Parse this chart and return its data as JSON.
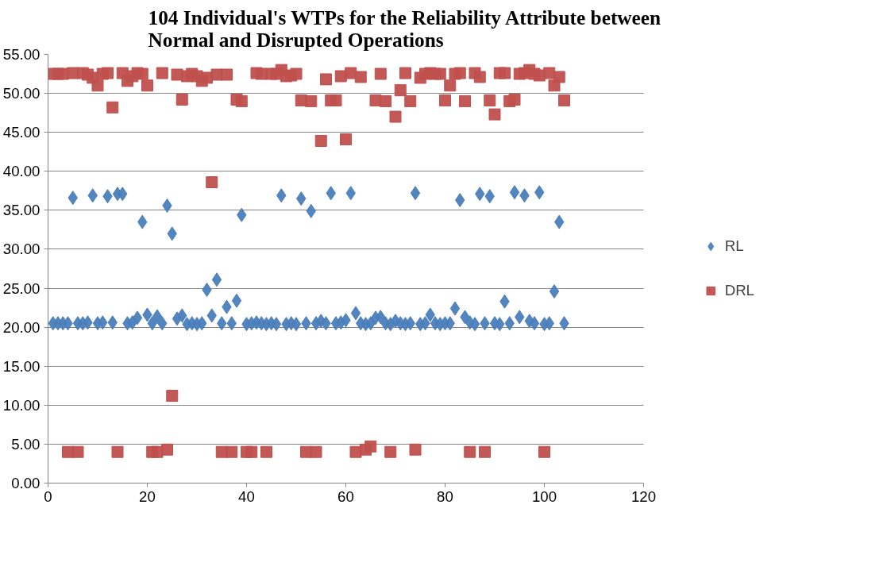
{
  "chart_data": {
    "type": "scatter",
    "title": "104 Individual's WTPs for the Reliability Attribute between Normal and Disrupted Operations",
    "x": [
      1,
      2,
      3,
      4,
      5,
      6,
      7,
      8,
      9,
      10,
      11,
      12,
      13,
      14,
      15,
      16,
      17,
      18,
      19,
      20,
      21,
      22,
      23,
      24,
      25,
      26,
      27,
      28,
      29,
      30,
      31,
      32,
      33,
      34,
      35,
      36,
      37,
      38,
      39,
      40,
      41,
      42,
      43,
      44,
      45,
      46,
      47,
      48,
      49,
      50,
      51,
      52,
      53,
      54,
      55,
      56,
      57,
      58,
      59,
      60,
      61,
      62,
      63,
      64,
      65,
      66,
      67,
      68,
      69,
      70,
      71,
      72,
      73,
      74,
      75,
      76,
      77,
      78,
      79,
      80,
      81,
      82,
      83,
      84,
      85,
      86,
      87,
      88,
      89,
      90,
      91,
      92,
      93,
      94,
      95,
      96,
      97,
      98,
      99,
      100,
      101,
      102,
      103,
      104
    ],
    "series": [
      {
        "name": "RL",
        "color": "#4a7ebb",
        "marker": "diamond",
        "values": [
          20.5,
          20.5,
          20.5,
          20.5,
          36.6,
          20.5,
          20.5,
          20.6,
          36.9,
          20.5,
          20.6,
          36.8,
          20.6,
          37.1,
          37.1,
          20.5,
          20.6,
          21.2,
          33.5,
          21.6,
          20.5,
          21.4,
          20.5,
          35.6,
          32.0,
          21.1,
          21.5,
          20.4,
          20.5,
          20.4,
          20.5,
          24.8,
          21.5,
          26.1,
          20.5,
          22.6,
          20.5,
          23.4,
          34.4,
          20.4,
          20.5,
          20.6,
          20.5,
          20.4,
          20.5,
          20.4,
          36.9,
          20.4,
          20.5,
          20.4,
          36.5,
          20.5,
          34.9,
          20.5,
          20.8,
          20.5,
          37.2,
          20.5,
          20.6,
          20.9,
          37.2,
          21.8,
          20.5,
          20.4,
          20.5,
          21.2,
          21.3,
          20.5,
          20.4,
          20.8,
          20.5,
          20.4,
          20.5,
          37.2,
          20.4,
          20.5,
          21.6,
          20.5,
          20.4,
          20.5,
          20.5,
          22.4,
          36.3,
          21.3,
          20.6,
          20.4,
          37.1,
          20.5,
          36.8,
          20.5,
          20.4,
          23.3,
          20.5,
          37.3,
          21.3,
          36.9,
          20.8,
          20.5,
          37.3,
          20.4,
          20.5,
          24.6,
          33.5,
          20.5
        ]
      },
      {
        "name": "DRL",
        "color": "#c0504d",
        "marker": "square",
        "values": [
          52.5,
          52.5,
          52.5,
          4,
          52.6,
          4,
          52.6,
          52.4,
          52,
          51,
          52.5,
          52.6,
          48.2,
          4,
          52.6,
          51.6,
          52.2,
          52.6,
          52.5,
          51,
          4,
          4,
          52.6,
          4.3,
          11.2,
          52.4,
          49.2,
          52.2,
          52.5,
          52.2,
          51.6,
          52,
          38.6,
          52.4,
          4,
          52.4,
          4,
          49.2,
          49,
          4,
          4,
          52.6,
          52.5,
          4,
          52.5,
          52.5,
          53.0,
          52.2,
          52.3,
          52.5,
          49.1,
          4,
          49,
          4,
          43.9,
          51.8,
          49.1,
          49.1,
          52.2,
          44.1,
          52.6,
          4,
          52.1,
          4.3,
          4.7,
          49.1,
          52.5,
          49,
          4,
          47.0,
          50.4,
          52.6,
          49,
          4.3,
          52,
          52.5,
          52.6,
          52.5,
          52.5,
          49.1,
          51,
          52.5,
          52.6,
          49,
          4,
          52.6,
          52.1,
          4,
          49.1,
          47.3,
          52.6,
          52.6,
          49,
          49.2,
          52.5,
          52.6,
          53.0,
          52.5,
          52.3,
          4,
          52.6,
          51,
          52.1,
          49.1
        ]
      }
    ],
    "xlim": [
      0,
      120
    ],
    "xticks": [
      0,
      20,
      40,
      60,
      80,
      100,
      120
    ],
    "ylim": [
      0,
      55
    ],
    "yticks": [
      {
        "value": 0,
        "label": "0.00"
      },
      {
        "value": 5,
        "label": "5.00"
      },
      {
        "value": 10,
        "label": "10.00"
      },
      {
        "value": 15,
        "label": "15.00"
      },
      {
        "value": 20,
        "label": "20.00"
      },
      {
        "value": 25,
        "label": "25.00"
      },
      {
        "value": 30,
        "label": "30.00"
      },
      {
        "value": 35,
        "label": "35.00"
      },
      {
        "value": 40,
        "label": "40.00"
      },
      {
        "value": 45,
        "label": "45.00"
      },
      {
        "value": 50,
        "label": "50.00"
      },
      {
        "value": 55,
        "label": "55.00"
      }
    ],
    "grid": "y",
    "legend": "right"
  }
}
